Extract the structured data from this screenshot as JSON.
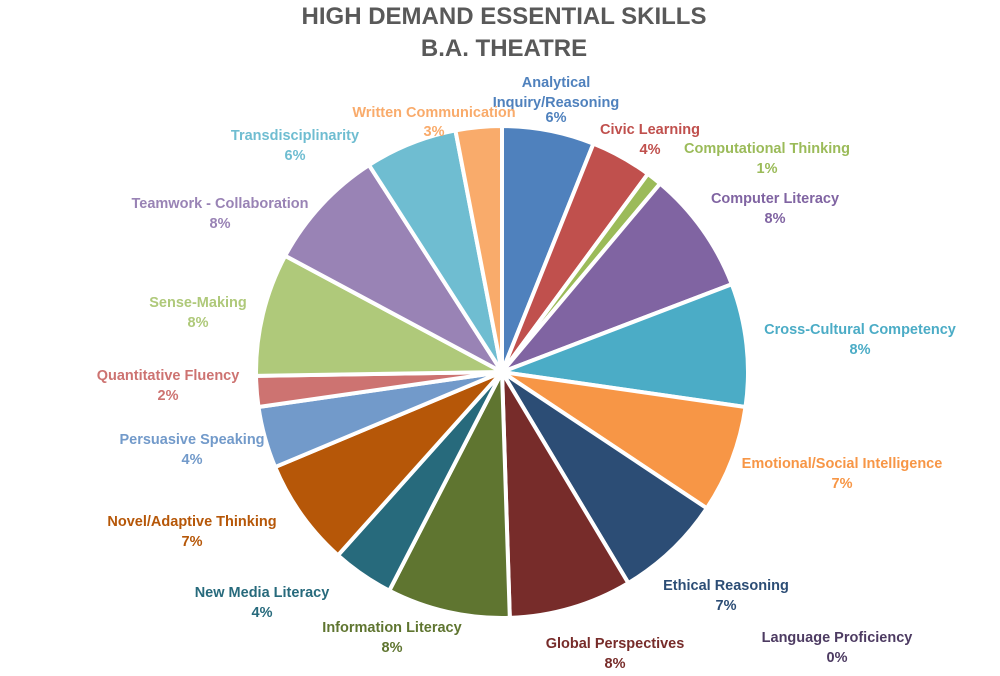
{
  "chart_data": {
    "type": "pie",
    "title": "HIGH DEMAND ESSENTIAL SKILLS",
    "subtitle": "B.A. THEATRE",
    "slices": [
      {
        "label": "Analytical Inquiry/Reasoning",
        "value": 6,
        "value_label": "6%",
        "color": "#4F81BD"
      },
      {
        "label": "Civic Learning",
        "value": 4,
        "value_label": "4%",
        "color": "#C0504D"
      },
      {
        "label": "Computational Thinking",
        "value": 1,
        "value_label": "1%",
        "color": "#9BBB59"
      },
      {
        "label": "Computer Literacy",
        "value": 8,
        "value_label": "8%",
        "color": "#8064A2"
      },
      {
        "label": "Cross-Cultural Competency",
        "value": 8,
        "value_label": "8%",
        "color": "#4BACC6"
      },
      {
        "label": "Emotional/Social Intelligence",
        "value": 7,
        "value_label": "7%",
        "color": "#F79646"
      },
      {
        "label": "Ethical Reasoning",
        "value": 7,
        "value_label": "7%",
        "color": "#2C4D75"
      },
      {
        "label": "Global Perspectives",
        "value": 8,
        "value_label": "8%",
        "color": "#772C2A"
      },
      {
        "label": "Information Literacy",
        "value": 8,
        "value_label": "8%",
        "color": "#5F7530"
      },
      {
        "label": "Language Proficiency",
        "value": 0,
        "value_label": "0%",
        "color": "#4D3B62"
      },
      {
        "label": "New Media Literacy",
        "value": 4,
        "value_label": "4%",
        "color": "#276A7C"
      },
      {
        "label": "Novel/Adaptive Thinking",
        "value": 7,
        "value_label": "7%",
        "color": "#B65708"
      },
      {
        "label": "Persuasive Speaking",
        "value": 4,
        "value_label": "4%",
        "color": "#729ACA"
      },
      {
        "label": "Quantitative Fluency",
        "value": 2,
        "value_label": "2%",
        "color": "#CD7371"
      },
      {
        "label": "Sense-Making",
        "value": 8,
        "value_label": "8%",
        "color": "#AFC97A"
      },
      {
        "label": "Teamwork - Collaboration",
        "value": 8,
        "value_label": "8%",
        "color": "#9983B5"
      },
      {
        "label": "Transdisciplinarity",
        "value": 6,
        "value_label": "6%",
        "color": "#6FBDD1"
      },
      {
        "label": "Written Communication",
        "value": 3,
        "value_label": "3%",
        "color": "#F9AB6B"
      }
    ]
  }
}
